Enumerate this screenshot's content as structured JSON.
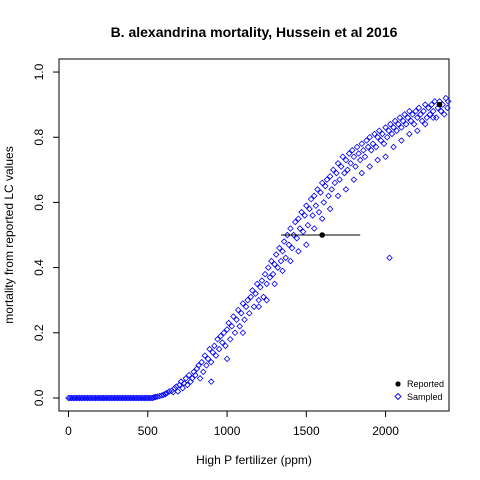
{
  "chart_data": {
    "type": "scatter",
    "title": "B. alexandrina mortality, Hussein et al 2016",
    "xlabel": "High P fertilizer (ppm)",
    "ylabel": "mortality from reported LC values",
    "xlim": [
      -60,
      2400
    ],
    "ylim": [
      -0.04,
      1.04
    ],
    "x_ticks": [
      0,
      500,
      1000,
      1500,
      2000
    ],
    "x_tick_labels": [
      "0",
      "500",
      "1000",
      "1500",
      "2000"
    ],
    "y_ticks": [
      0.0,
      0.2,
      0.4,
      0.6,
      0.8,
      1.0
    ],
    "y_tick_labels": [
      "0.0",
      "0.2",
      "0.4",
      "0.6",
      "0.8",
      "1.0"
    ],
    "grid": false,
    "legend_position": "bottom-right",
    "series": [
      {
        "name": "Reported",
        "marker": "filled-circle",
        "color": "#000000",
        "points": [
          {
            "x": 1600,
            "y": 0.5,
            "xerr_low": 1340,
            "xerr_high": 1840
          },
          {
            "x": 2340,
            "y": 0.9
          }
        ]
      },
      {
        "name": "Sampled",
        "marker": "open-diamond",
        "color": "#0000ff",
        "x": [
          0,
          10,
          20,
          30,
          40,
          50,
          60,
          70,
          80,
          90,
          100,
          110,
          120,
          130,
          140,
          150,
          160,
          170,
          180,
          190,
          200,
          210,
          220,
          230,
          240,
          250,
          260,
          270,
          280,
          290,
          300,
          310,
          320,
          330,
          340,
          350,
          360,
          370,
          380,
          390,
          400,
          410,
          420,
          430,
          440,
          450,
          460,
          470,
          480,
          490,
          500,
          510,
          520,
          530,
          540,
          550,
          560,
          575,
          590,
          600,
          610,
          620,
          635,
          650,
          660,
          670,
          680,
          690,
          700,
          710,
          720,
          730,
          740,
          750,
          760,
          770,
          780,
          790,
          800,
          810,
          820,
          830,
          840,
          850,
          860,
          870,
          880,
          890,
          900,
          910,
          920,
          930,
          940,
          950,
          960,
          970,
          980,
          990,
          1000,
          1010,
          1020,
          1030,
          1040,
          1050,
          1060,
          1070,
          1080,
          1090,
          1100,
          1110,
          1120,
          1130,
          1140,
          1150,
          1160,
          1170,
          1180,
          1190,
          1200,
          1210,
          1220,
          1230,
          1240,
          1250,
          1260,
          1270,
          1280,
          1290,
          1300,
          1310,
          1320,
          1330,
          1340,
          1350,
          1360,
          1370,
          1380,
          1390,
          1400,
          1410,
          1420,
          1430,
          1440,
          1450,
          1460,
          1470,
          1480,
          1490,
          1500,
          1510,
          1520,
          1530,
          1540,
          1550,
          1560,
          1570,
          1580,
          1590,
          1600,
          1610,
          1620,
          1630,
          1640,
          1650,
          1660,
          1670,
          1680,
          1690,
          1700,
          1710,
          1720,
          1730,
          1740,
          1750,
          1760,
          1770,
          1780,
          1790,
          1800,
          1810,
          1820,
          1830,
          1840,
          1850,
          1860,
          1870,
          1880,
          1890,
          1900,
          1910,
          1920,
          1930,
          1940,
          1950,
          1960,
          1970,
          1980,
          1990,
          2000,
          2010,
          2020,
          2030,
          2040,
          2050,
          2060,
          2070,
          2080,
          2090,
          2100,
          2110,
          2120,
          2130,
          2140,
          2150,
          2160,
          2170,
          2180,
          2190,
          2200,
          2210,
          2220,
          2230,
          2240,
          2250,
          2260,
          2270,
          2280,
          2290,
          2300,
          2310,
          2320,
          2330,
          2340,
          2350,
          2360,
          2370,
          2380,
          2390,
          2395,
          2025,
          900,
          1000,
          1100,
          1200,
          1300,
          1400,
          1500,
          1600,
          1700,
          1800,
          1900,
          2000,
          2100,
          2200,
          2300,
          1250,
          1350,
          1450,
          1550,
          1650,
          1750,
          1850,
          1950,
          2050,
          2150,
          2250,
          2350
        ],
        "y": [
          0,
          0,
          0,
          0,
          0,
          0,
          0,
          0,
          0,
          0,
          0,
          0,
          0,
          0,
          0,
          0,
          0,
          0,
          0,
          0,
          0,
          0,
          0,
          0,
          0,
          0,
          0,
          0,
          0,
          0,
          0,
          0,
          0,
          0,
          0,
          0,
          0,
          0,
          0,
          0,
          0,
          0,
          0,
          0,
          0,
          0,
          0,
          0,
          0,
          0,
          0,
          0,
          0,
          0,
          0.002,
          0.003,
          0.004,
          0.006,
          0.008,
          0.01,
          0.012,
          0.015,
          0.02,
          0.022,
          0.018,
          0.03,
          0.035,
          0.02,
          0.04,
          0.05,
          0.03,
          0.045,
          0.06,
          0.04,
          0.07,
          0.05,
          0.06,
          0.08,
          0.07,
          0.09,
          0.1,
          0.06,
          0.11,
          0.08,
          0.13,
          0.1,
          0.12,
          0.15,
          0.11,
          0.14,
          0.16,
          0.13,
          0.18,
          0.15,
          0.19,
          0.17,
          0.2,
          0.16,
          0.21,
          0.23,
          0.18,
          0.22,
          0.25,
          0.2,
          0.24,
          0.27,
          0.22,
          0.26,
          0.29,
          0.24,
          0.28,
          0.3,
          0.26,
          0.31,
          0.33,
          0.28,
          0.32,
          0.35,
          0.3,
          0.34,
          0.36,
          0.31,
          0.38,
          0.35,
          0.4,
          0.37,
          0.42,
          0.38,
          0.41,
          0.44,
          0.4,
          0.46,
          0.42,
          0.45,
          0.48,
          0.43,
          0.5,
          0.47,
          0.52,
          0.46,
          0.5,
          0.54,
          0.49,
          0.55,
          0.52,
          0.57,
          0.51,
          0.56,
          0.59,
          0.53,
          0.58,
          0.61,
          0.56,
          0.62,
          0.59,
          0.64,
          0.57,
          0.63,
          0.66,
          0.6,
          0.65,
          0.67,
          0.62,
          0.68,
          0.64,
          0.7,
          0.66,
          0.69,
          0.72,
          0.67,
          0.71,
          0.74,
          0.69,
          0.73,
          0.7,
          0.75,
          0.72,
          0.76,
          0.74,
          0.71,
          0.77,
          0.75,
          0.73,
          0.78,
          0.76,
          0.74,
          0.79,
          0.77,
          0.8,
          0.76,
          0.78,
          0.81,
          0.77,
          0.8,
          0.82,
          0.79,
          0.81,
          0.78,
          0.83,
          0.8,
          0.82,
          0.84,
          0.81,
          0.83,
          0.85,
          0.82,
          0.84,
          0.86,
          0.83,
          0.85,
          0.87,
          0.84,
          0.86,
          0.88,
          0.85,
          0.87,
          0.84,
          0.88,
          0.86,
          0.89,
          0.87,
          0.85,
          0.88,
          0.9,
          0.86,
          0.89,
          0.87,
          0.9,
          0.88,
          0.91,
          0.86,
          0.89,
          0.91,
          0.88,
          0.9,
          0.87,
          0.92,
          0.89,
          0.91,
          0.43,
          0.05,
          0.12,
          0.2,
          0.28,
          0.35,
          0.42,
          0.47,
          0.55,
          0.62,
          0.67,
          0.71,
          0.74,
          0.79,
          0.82,
          0.86,
          0.3,
          0.39,
          0.45,
          0.52,
          0.58,
          0.64,
          0.69,
          0.73,
          0.77,
          0.81,
          0.84,
          0.88
        ]
      }
    ]
  }
}
